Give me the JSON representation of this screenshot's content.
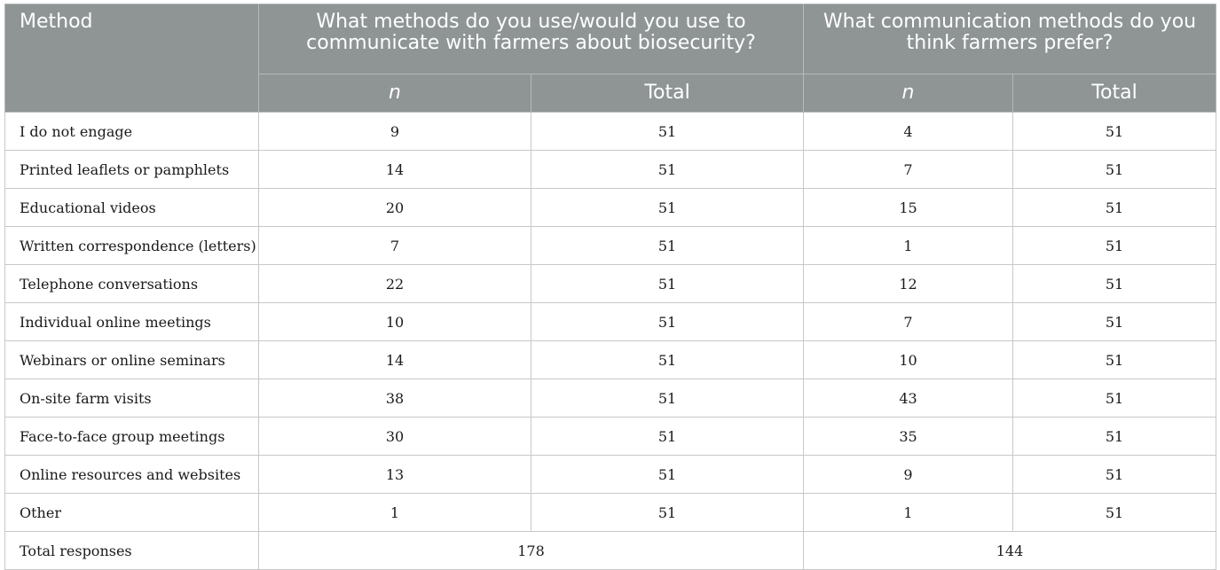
{
  "header": {
    "method": "Method",
    "group1": "What methods do you use/would you use to communicate with farmers about biosecurity?",
    "group2": "What communication methods do you think farmers prefer?",
    "sub_n": "n",
    "sub_total": "Total"
  },
  "rows": [
    {
      "method": "I do not engage",
      "n1": "9",
      "t1": "51",
      "n2": "4",
      "t2": "51"
    },
    {
      "method": "Printed leaflets or pamphlets",
      "n1": "14",
      "t1": "51",
      "n2": "7",
      "t2": "51"
    },
    {
      "method": "Educational videos",
      "n1": "20",
      "t1": "51",
      "n2": "15",
      "t2": "51"
    },
    {
      "method": "Written correspondence (letters)",
      "n1": "7",
      "t1": "51",
      "n2": "1",
      "t2": "51"
    },
    {
      "method": "Telephone conversations",
      "n1": "22",
      "t1": "51",
      "n2": "12",
      "t2": "51"
    },
    {
      "method": "Individual online meetings",
      "n1": "10",
      "t1": "51",
      "n2": "7",
      "t2": "51"
    },
    {
      "method": "Webinars or online seminars",
      "n1": "14",
      "t1": "51",
      "n2": "10",
      "t2": "51"
    },
    {
      "method": "On-site farm visits",
      "n1": "38",
      "t1": "51",
      "n2": "43",
      "t2": "51"
    },
    {
      "method": "Face-to-face group meetings",
      "n1": "30",
      "t1": "51",
      "n2": "35",
      "t2": "51"
    },
    {
      "method": "Online resources and websites",
      "n1": "13",
      "t1": "51",
      "n2": "9",
      "t2": "51"
    },
    {
      "method": "Other",
      "n1": "1",
      "t1": "51",
      "n2": "1",
      "t2": "51"
    }
  ],
  "total_row": {
    "label": "Total responses",
    "total1": "178",
    "total2": "144"
  }
}
